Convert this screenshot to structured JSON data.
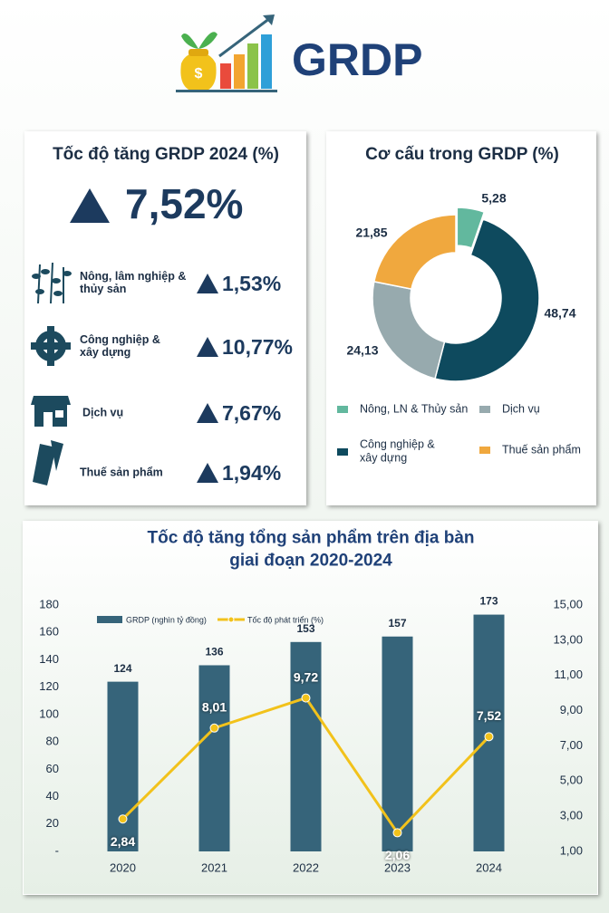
{
  "header": {
    "title": "GRDP"
  },
  "growth": {
    "title": "Tốc độ tăng GRDP 2024 (%)",
    "total": "7,52%",
    "sectors": [
      {
        "name": "Nông, lâm nghiệp &\nthủy sản",
        "value": "1,53%"
      },
      {
        "name": "Công nghiệp &\nxây dựng",
        "value": "10,77%"
      },
      {
        "name": "Dịch vụ",
        "value": "7,67%"
      },
      {
        "name": "Thuế sản phẩm",
        "value": "1,94%"
      }
    ]
  },
  "chart_data": [
    {
      "type": "pie",
      "title": "Cơ cấu trong GRDP (%)",
      "categories": [
        "Nông, LN & Thủy sản",
        "Công nghiệp &\nxây dựng",
        "Dịch vụ",
        "Thuế sản phẩm"
      ],
      "values": [
        5.28,
        48.74,
        24.13,
        21.85
      ],
      "value_labels": [
        "5,28",
        "48,74",
        "24,13",
        "21,85"
      ],
      "colors": [
        "#62b89e",
        "#0e4a5e",
        "#97aaae",
        "#f0a83e"
      ]
    },
    {
      "type": "bar",
      "title": "Tốc độ tăng tổng sản phẩm trên địa bàn\ngiai đoạn 2020-2024",
      "categories": [
        "2020",
        "2021",
        "2022",
        "2023",
        "2024"
      ],
      "series": [
        {
          "name": "GRDP (nghìn tỷ đồng)",
          "type": "bar",
          "color": "#36647a",
          "values": [
            124,
            136,
            153,
            157,
            173
          ]
        },
        {
          "name": "Tốc độ phát triển (%)",
          "type": "line",
          "axis": "y2",
          "color": "#f2c21b",
          "values": [
            2.84,
            8.01,
            9.72,
            2.06,
            7.52
          ],
          "value_labels": [
            "2,84",
            "8,01",
            "9,72",
            "2,06",
            "7,52"
          ]
        }
      ],
      "ylim": [
        0,
        180
      ],
      "yticks": [
        {
          "value": 0,
          "label": "-"
        },
        20,
        40,
        60,
        80,
        100,
        120,
        140,
        160,
        180
      ],
      "y2lim": [
        1,
        15
      ],
      "y2ticks": [
        {
          "value": 1,
          "label": "1,00"
        },
        {
          "value": 3,
          "label": "3,00"
        },
        {
          "value": 5,
          "label": "5,00"
        },
        {
          "value": 7,
          "label": "7,00"
        },
        {
          "value": 9,
          "label": "9,00"
        },
        {
          "value": 11,
          "label": "11,00"
        },
        {
          "value": 13,
          "label": "13,00"
        },
        {
          "value": 15,
          "label": "15,00"
        }
      ]
    }
  ]
}
